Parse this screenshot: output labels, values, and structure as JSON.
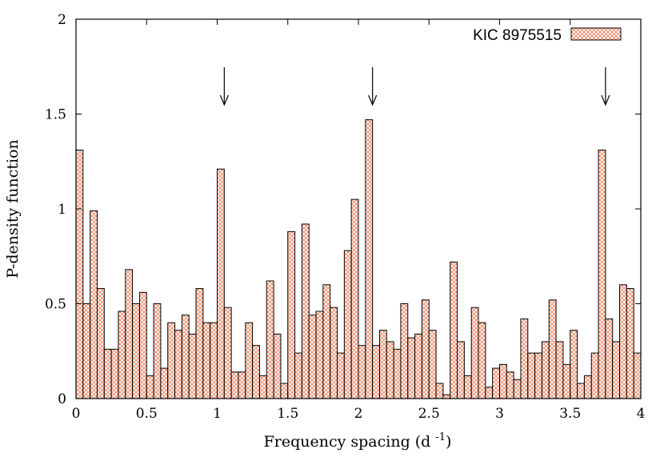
{
  "chart_data": {
    "type": "bar",
    "title": "",
    "xlabel": "Frequency spacing (d",
    "xlabel_sup": "-1",
    "xlabel_close": ")",
    "ylabel": "P-density function",
    "xlim": [
      0,
      4
    ],
    "ylim": [
      0,
      2
    ],
    "x_ticks": [
      "0",
      "0.5",
      "1",
      "1.5",
      "2",
      "2.5",
      "3",
      "3.5",
      "4"
    ],
    "y_ticks": [
      "0",
      "0.5",
      "1",
      "1.5",
      "2"
    ],
    "bin_width": 0.05,
    "grid": false,
    "legend": {
      "label": "KIC 8975515",
      "position": "top-right"
    },
    "bar_fill_pattern": "cross-hatch",
    "bar_color": "#e8724a",
    "arrows_at": [
      1.05,
      2.1,
      3.75
    ],
    "series": [
      {
        "name": "KIC 8975515",
        "x": [
          0.0,
          0.05,
          0.1,
          0.15,
          0.2,
          0.25,
          0.3,
          0.35,
          0.4,
          0.45,
          0.5,
          0.55,
          0.6,
          0.65,
          0.7,
          0.75,
          0.8,
          0.85,
          0.9,
          0.95,
          1.0,
          1.05,
          1.1,
          1.15,
          1.2,
          1.25,
          1.3,
          1.35,
          1.4,
          1.45,
          1.5,
          1.55,
          1.6,
          1.65,
          1.7,
          1.75,
          1.8,
          1.85,
          1.9,
          1.95,
          2.0,
          2.05,
          2.1,
          2.15,
          2.2,
          2.25,
          2.3,
          2.35,
          2.4,
          2.45,
          2.5,
          2.55,
          2.6,
          2.65,
          2.7,
          2.75,
          2.8,
          2.85,
          2.9,
          2.95,
          3.0,
          3.05,
          3.1,
          3.15,
          3.2,
          3.25,
          3.3,
          3.35,
          3.4,
          3.45,
          3.5,
          3.55,
          3.6,
          3.65,
          3.7,
          3.75,
          3.8,
          3.85,
          3.9,
          3.95,
          4.0
        ],
        "values": [
          1.31,
          0.5,
          0.99,
          0.58,
          0.26,
          0.26,
          0.46,
          0.68,
          0.5,
          0.56,
          0.12,
          0.5,
          0.16,
          0.4,
          0.36,
          0.44,
          0.34,
          0.58,
          0.4,
          0.4,
          1.21,
          0.48,
          0.14,
          0.14,
          0.4,
          0.28,
          0.12,
          0.62,
          0.34,
          0.08,
          0.88,
          0.24,
          0.92,
          0.44,
          0.46,
          0.6,
          0.48,
          0.24,
          0.78,
          1.05,
          0.28,
          1.47,
          0.28,
          0.36,
          0.3,
          0.26,
          0.5,
          0.32,
          0.34,
          0.52,
          0.36,
          0.08,
          0.02,
          0.72,
          0.3,
          0.12,
          0.48,
          0.4,
          0.06,
          0.16,
          0.18,
          0.14,
          0.1,
          0.42,
          0.24,
          0.24,
          0.3,
          0.52,
          0.3,
          0.18,
          0.36,
          0.08,
          0.12,
          0.24,
          1.31,
          0.42,
          0.3,
          0.6,
          0.58,
          0.24,
          0.0
        ]
      }
    ]
  }
}
